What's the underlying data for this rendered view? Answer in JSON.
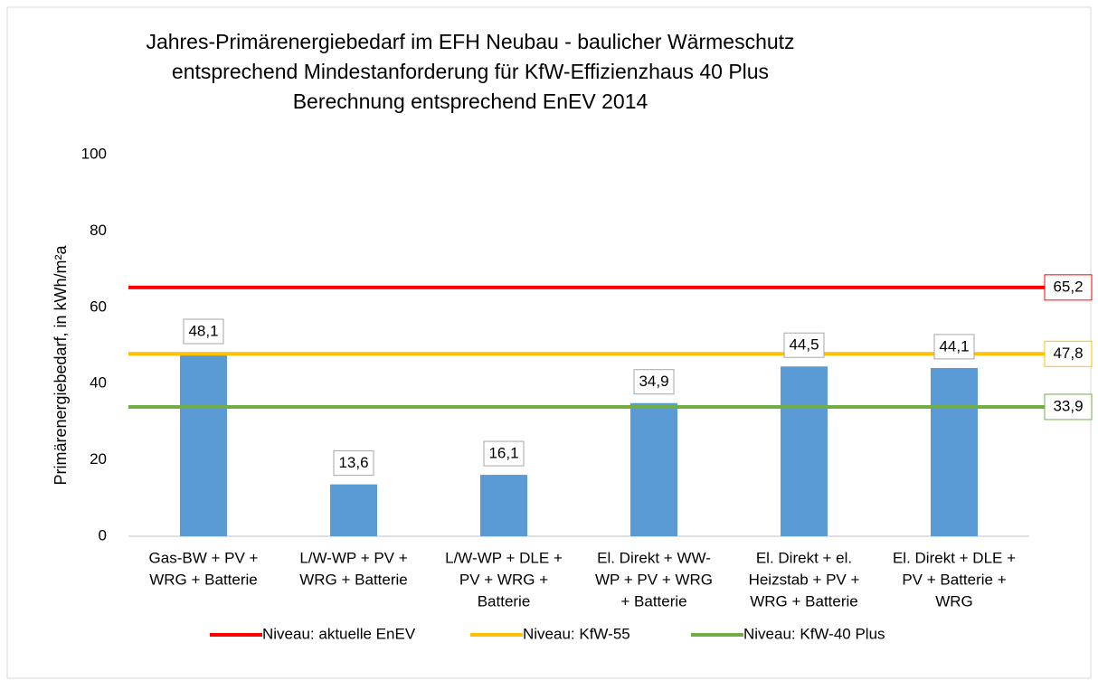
{
  "chart_data": {
    "type": "bar",
    "title": [
      "Jahres-Primärenergiebedarf im EFH Neubau - baulicher Wärmeschutz",
      "entsprechend Mindestanforderung für KfW-Effizienzhaus 40 Plus",
      "Berechnung entsprechend EnEV 2014"
    ],
    "y_label": "Primärenergiebedarf, in kWh/m²a",
    "categories": [
      [
        "Gas-BW + PV +",
        "WRG + Batterie"
      ],
      [
        "L/W-WP + PV +",
        "WRG + Batterie"
      ],
      [
        "L/W-WP + DLE +",
        "PV  + WRG +",
        "Batterie"
      ],
      [
        "El. Direkt + WW-",
        "WP + PV + WRG",
        "+ Batterie"
      ],
      [
        "El. Direkt + el.",
        "Heizstab + PV +",
        "WRG + Batterie"
      ],
      [
        "El. Direkt + DLE +",
        "PV + Batterie +",
        "WRG"
      ]
    ],
    "values": [
      48.1,
      13.6,
      16.1,
      34.9,
      44.5,
      44.1
    ],
    "value_labels": [
      "48,1",
      "13,6",
      "16,1",
      "34,9",
      "44,5",
      "44,1"
    ],
    "color": "#5b9bd5",
    "reference_lines": [
      {
        "name": "Niveau: aktuelle EnEV",
        "color": "#ff0000",
        "value": 65.2,
        "value_label": "65,2"
      },
      {
        "name": "Niveau: KfW-55",
        "color": "#ffc000",
        "value": 47.8,
        "value_label": "47,8"
      },
      {
        "name": "Niveau: KfW-40 Plus",
        "color": "#70ad47",
        "value": 33.9,
        "value_label": "33,9"
      }
    ],
    "ylim": [
      0,
      100
    ],
    "yticks": [
      0,
      20,
      40,
      60,
      80,
      100
    ],
    "grid": false,
    "legend": "bottom"
  }
}
